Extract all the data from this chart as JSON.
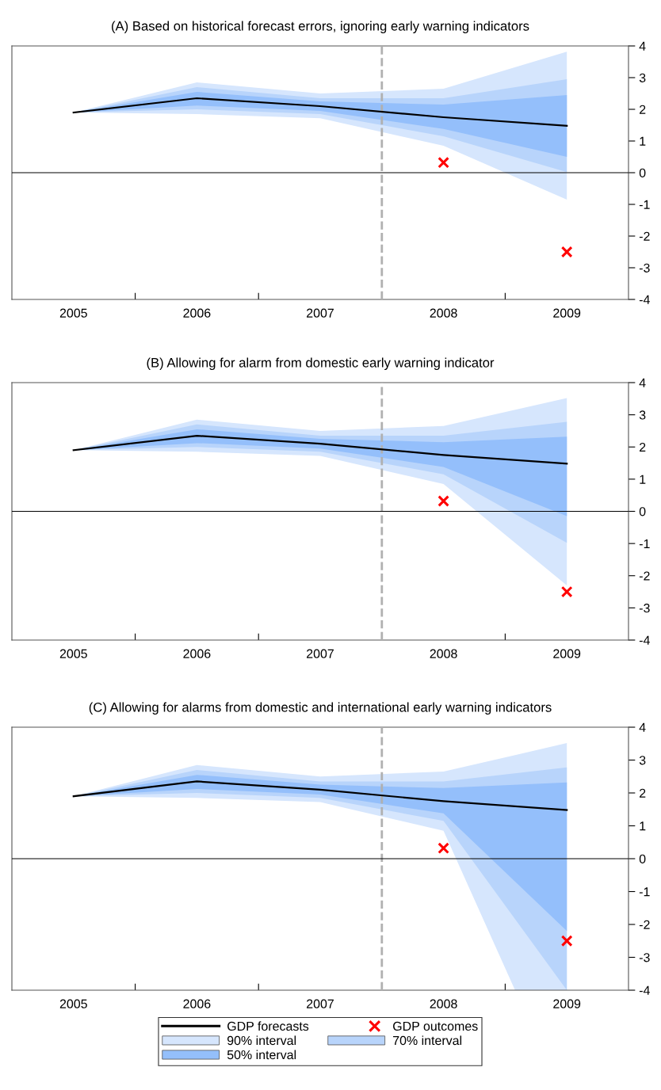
{
  "chart_data": [
    {
      "type": "line",
      "title": "(A) Based on historical forecast errors, ignoring early warning indicators",
      "x": [
        2005,
        2006,
        2007,
        2008,
        2009
      ],
      "xlim": [
        2004.5,
        2009.5
      ],
      "xticks": [
        2005,
        {
          "value": 2005.5,
          "label": null
        },
        2006,
        {
          "value": 2006.5,
          "label": null
        },
        2007,
        {
          "value": 2007.5,
          "label": null
        },
        2008,
        {
          "value": 2008.5,
          "label": null
        },
        2009
      ],
      "ylim": [
        -4,
        4
      ],
      "yticks": [
        -4,
        -3,
        -2,
        -1,
        0,
        1,
        2,
        3,
        4
      ],
      "grid": false,
      "ref_lines": [
        {
          "axis": "x",
          "value": 2007.5,
          "color": "#b0b0b0",
          "line_style": "dashed"
        },
        {
          "axis": "y",
          "value": 0,
          "color": "#000000",
          "line_style": "solid"
        }
      ],
      "series": [
        {
          "color": "#d6e6fd",
          "values": [
            null,
            null,
            null,
            null,
            null
          ],
          "lower": [
            1.9,
            1.85,
            1.72,
            0.85,
            -0.85
          ],
          "upper": [
            1.9,
            2.85,
            2.5,
            2.65,
            3.82
          ]
        },
        {
          "color": "#b8d4fb",
          "values": [
            null,
            null,
            null,
            null,
            null
          ],
          "lower": [
            1.9,
            2.0,
            1.85,
            1.15,
            0.02
          ],
          "upper": [
            1.9,
            2.7,
            2.35,
            2.35,
            2.95
          ]
        },
        {
          "color": "#94bffb",
          "values": [
            null,
            null,
            null,
            null,
            null
          ],
          "lower": [
            1.9,
            2.12,
            1.95,
            1.38,
            0.5
          ],
          "upper": [
            1.9,
            2.55,
            2.25,
            2.15,
            2.45
          ]
        },
        {
          "color": "#000000",
          "values": [
            1.9,
            2.35,
            2.1,
            1.75,
            1.48
          ]
        },
        {
          "type": "scatter",
          "marker": "cross",
          "color": "#ff0000",
          "x": [
            2008,
            2009
          ],
          "values": [
            0.32,
            -2.5
          ]
        }
      ]
    },
    {
      "type": "line",
      "title": "(B) Allowing for alarm from domestic early warning indicator",
      "x": [
        2005,
        2006,
        2007,
        2008,
        2009
      ],
      "xlim": [
        2004.5,
        2009.5
      ],
      "xticks": [
        2005,
        {
          "value": 2005.5,
          "label": null
        },
        2006,
        {
          "value": 2006.5,
          "label": null
        },
        2007,
        {
          "value": 2007.5,
          "label": null
        },
        2008,
        {
          "value": 2008.5,
          "label": null
        },
        2009
      ],
      "ylim": [
        -4,
        4
      ],
      "yticks": [
        -4,
        -3,
        -2,
        -1,
        0,
        1,
        2,
        3,
        4
      ],
      "grid": false,
      "ref_lines": [
        {
          "axis": "x",
          "value": 2007.5,
          "color": "#b0b0b0",
          "line_style": "dashed"
        },
        {
          "axis": "y",
          "value": 0,
          "color": "#000000",
          "line_style": "solid"
        }
      ],
      "series": [
        {
          "color": "#d6e6fd",
          "values": [
            null,
            null,
            null,
            null,
            null
          ],
          "lower": [
            1.9,
            1.85,
            1.72,
            0.85,
            -2.3
          ],
          "upper": [
            1.9,
            2.85,
            2.5,
            2.65,
            3.52
          ]
        },
        {
          "color": "#b8d4fb",
          "values": [
            null,
            null,
            null,
            null,
            null
          ],
          "lower": [
            1.9,
            2.0,
            1.85,
            1.15,
            -0.98
          ],
          "upper": [
            1.9,
            2.7,
            2.35,
            2.35,
            2.78
          ]
        },
        {
          "color": "#94bffb",
          "values": [
            null,
            null,
            null,
            null,
            null
          ],
          "lower": [
            1.9,
            2.12,
            1.95,
            1.38,
            -0.15
          ],
          "upper": [
            1.9,
            2.55,
            2.25,
            2.15,
            2.32
          ]
        },
        {
          "color": "#000000",
          "values": [
            1.9,
            2.35,
            2.1,
            1.75,
            1.48
          ]
        },
        {
          "type": "scatter",
          "marker": "cross",
          "color": "#ff0000",
          "x": [
            2008,
            2009
          ],
          "values": [
            0.32,
            -2.5
          ]
        }
      ]
    },
    {
      "type": "line",
      "title": "(C) Allowing for alarms from domestic and international early warning indicators",
      "x": [
        2005,
        2006,
        2007,
        2008,
        2009
      ],
      "xlim": [
        2004.5,
        2009.5
      ],
      "xticks": [
        2005,
        {
          "value": 2005.5,
          "label": null
        },
        2006,
        {
          "value": 2006.5,
          "label": null
        },
        2007,
        {
          "value": 2007.5,
          "label": null
        },
        2008,
        {
          "value": 2008.5,
          "label": null
        },
        2009
      ],
      "ylim": [
        -4,
        4
      ],
      "yticks": [
        -4,
        -3,
        -2,
        -1,
        0,
        1,
        2,
        3,
        4
      ],
      "grid": false,
      "legend": "bottom",
      "ref_lines": [
        {
          "axis": "x",
          "value": 2007.5,
          "color": "#b0b0b0",
          "line_style": "dashed"
        },
        {
          "axis": "y",
          "value": 0,
          "color": "#000000",
          "line_style": "solid"
        }
      ],
      "series": [
        {
          "name": "90% interval",
          "color": "#d6e6fd",
          "x": [
            2005,
            2006,
            2007,
            2008,
            2008.58,
            2009
          ],
          "values": [
            null,
            null,
            null,
            null,
            null,
            null
          ],
          "lower": [
            1.9,
            1.85,
            1.72,
            0.85,
            -4,
            -4
          ],
          "upper": [
            1.9,
            2.85,
            2.5,
            2.65,
            3.15,
            3.52
          ]
        },
        {
          "name": "70% interval",
          "color": "#b8d4fb",
          "values": [
            null,
            null,
            null,
            null,
            null
          ],
          "lower": [
            1.9,
            2.0,
            1.85,
            1.15,
            -4
          ],
          "upper": [
            1.9,
            2.7,
            2.35,
            2.35,
            2.78
          ]
        },
        {
          "name": "50% interval",
          "color": "#94bffb",
          "values": [
            null,
            null,
            null,
            null,
            null
          ],
          "lower": [
            1.9,
            2.12,
            1.95,
            1.38,
            -2.2
          ],
          "upper": [
            1.9,
            2.55,
            2.25,
            2.15,
            2.32
          ]
        },
        {
          "name": "GDP forecasts",
          "color": "#000000",
          "values": [
            1.9,
            2.35,
            2.1,
            1.75,
            1.48
          ]
        },
        {
          "name": "GDP outcomes",
          "type": "scatter",
          "marker": "cross",
          "color": "#ff0000",
          "x": [
            2008,
            2009
          ],
          "values": [
            0.32,
            -2.5
          ]
        }
      ]
    }
  ]
}
